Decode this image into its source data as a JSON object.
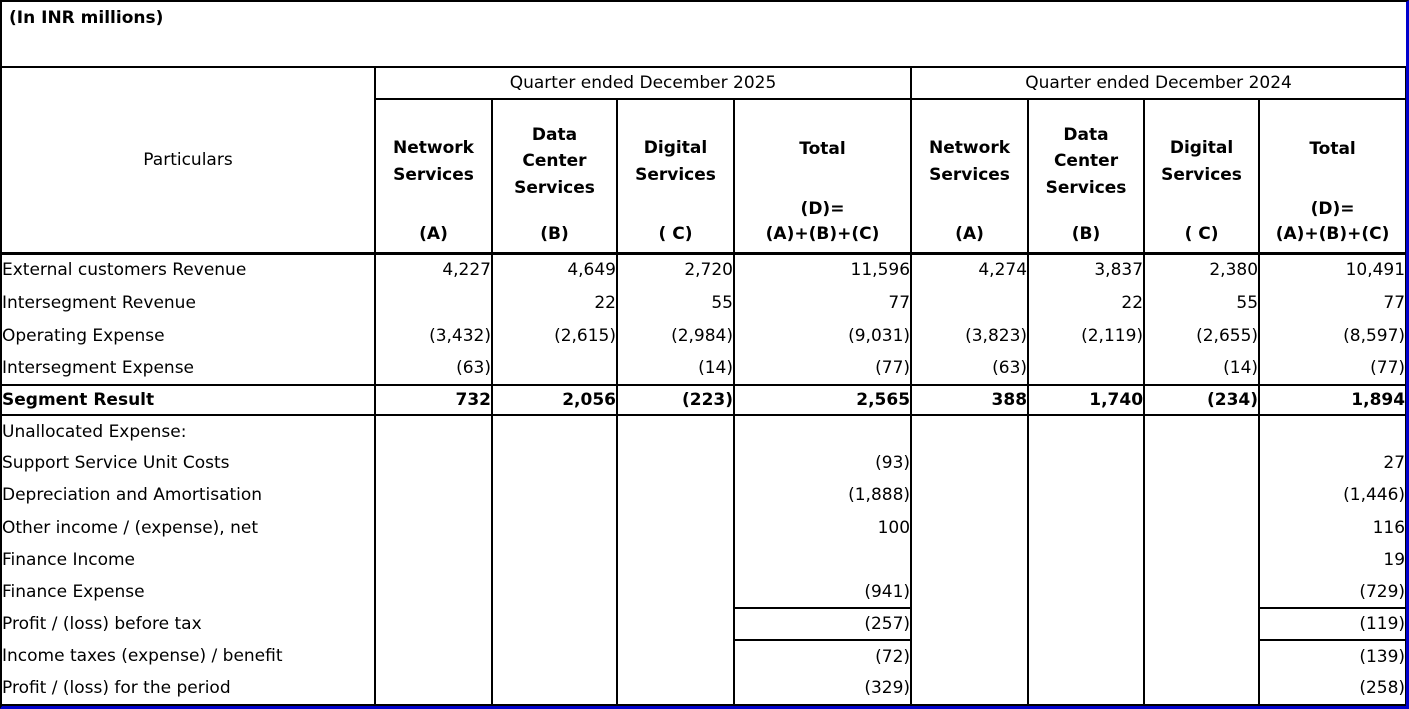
{
  "units_label": "(In INR millions)",
  "colors": {
    "grid": "#000000",
    "page_break_line": "#0000CC",
    "background": "#FFFFFF",
    "text": "#000000"
  },
  "table": {
    "particulars_header": "Particulars",
    "groups": [
      {
        "title": "Quarter ended December 2025",
        "columns": [
          {
            "name": "Network\nServices",
            "code": "(A)"
          },
          {
            "name": "Data\nCenter\nServices",
            "code": "(B)"
          },
          {
            "name": "Digital\nServices",
            "code": "( C)"
          },
          {
            "name": "Total",
            "code": "(D)=\n(A)+(B)+(C)"
          }
        ]
      },
      {
        "title": "Quarter ended December 2024",
        "columns": [
          {
            "name": "Network\nServices",
            "code": "(A)"
          },
          {
            "name": "Data\nCenter\nServices",
            "code": "(B)"
          },
          {
            "name": "Digital\nServices",
            "code": "( C)"
          },
          {
            "name": "Total",
            "code": "(D)=\n(A)+(B)+(C)"
          }
        ]
      }
    ],
    "rows": [
      {
        "label": "External customers Revenue",
        "values": [
          "4,227",
          "4,649",
          "2,720",
          "11,596",
          "4,274",
          "3,837",
          "2,380",
          "10,491"
        ],
        "bold": false,
        "style": "data"
      },
      {
        "label": "Intersegment Revenue",
        "values": [
          "",
          "22",
          "55",
          "77",
          "",
          "22",
          "55",
          "77"
        ],
        "bold": false,
        "style": "data"
      },
      {
        "label": "Operating Expense",
        "values": [
          "(3,432)",
          "(2,615)",
          "(2,984)",
          "(9,031)",
          "(3,823)",
          "(2,119)",
          "(2,655)",
          "(8,597)"
        ],
        "bold": false,
        "style": "data"
      },
      {
        "label": "Intersegment Expense",
        "values": [
          "(63)",
          "",
          "(14)",
          "(77)",
          "(63)",
          "",
          "(14)",
          "(77)"
        ],
        "bold": false,
        "style": "data"
      },
      {
        "label": "Segment Result",
        "values": [
          "732",
          "2,056",
          "(223)",
          "2,565",
          "388",
          "1,740",
          "(234)",
          "1,894"
        ],
        "bold": true,
        "style": "segment-result"
      },
      {
        "label": "Unallocated Expense:",
        "values": [
          "",
          "",
          "",
          "",
          "",
          "",
          "",
          ""
        ],
        "bold": false,
        "style": "lower"
      },
      {
        "label": "Support Service Unit Costs",
        "values": [
          "",
          "",
          "",
          "(93)",
          "",
          "",
          "",
          "27"
        ],
        "bold": false,
        "style": "lower"
      },
      {
        "label": "Depreciation and Amortisation",
        "values": [
          "",
          "",
          "",
          "(1,888)",
          "",
          "",
          "",
          "(1,446)"
        ],
        "bold": false,
        "style": "lower"
      },
      {
        "label": "Other income / (expense), net",
        "values": [
          "",
          "",
          "",
          "100",
          "",
          "",
          "",
          "116"
        ],
        "bold": false,
        "style": "lower"
      },
      {
        "label": "Finance Income",
        "values": [
          "",
          "",
          "",
          "",
          "",
          "",
          "",
          "19"
        ],
        "bold": false,
        "style": "lower"
      },
      {
        "label": "Finance Expense",
        "values": [
          "",
          "",
          "",
          "(941)",
          "",
          "",
          "",
          "(729)"
        ],
        "bold": false,
        "style": "lower"
      },
      {
        "label": "Profit / (loss) before tax",
        "values": [
          "",
          "",
          "",
          "(257)",
          "",
          "",
          "",
          "(119)"
        ],
        "bold": false,
        "style": "boxed-totals"
      },
      {
        "label": "Income taxes (expense) / benefit",
        "values": [
          "",
          "",
          "",
          "(72)",
          "",
          "",
          "",
          "(139)"
        ],
        "bold": false,
        "style": "lower"
      },
      {
        "label": "Profit / (loss) for the period",
        "values": [
          "",
          "",
          "",
          "(329)",
          "",
          "",
          "",
          "(258)"
        ],
        "bold": true,
        "style": "lower"
      }
    ]
  }
}
